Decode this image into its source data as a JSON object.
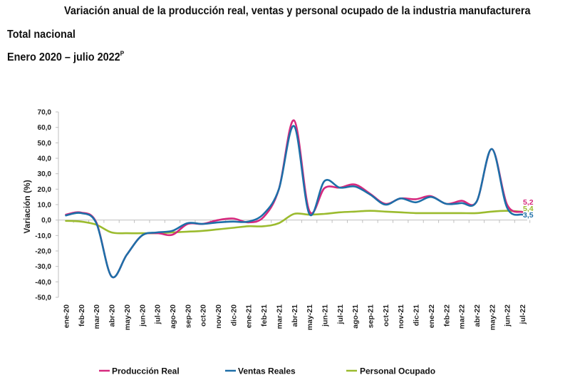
{
  "header": {
    "title": "Variación anual de la producción real, ventas y personal ocupado de la industria manufacturera",
    "subtitle_1": "Total nacional",
    "subtitle_2": "Enero 2020 – julio 2022",
    "subtitle_2_sup": "P"
  },
  "chart_data": {
    "type": "line",
    "title": "Variación anual de la producción real, ventas y personal ocupado de la industria manufacturera",
    "xlabel": "",
    "ylabel": "Variación (%)",
    "ylim": [
      -50,
      70
    ],
    "yticks": [
      70,
      60,
      50,
      40,
      30,
      20,
      10,
      0,
      -10,
      -20,
      -30,
      -40,
      -50
    ],
    "ytick_labels": [
      "70,0",
      "60,0",
      "50,0",
      "40,0",
      "30,0",
      "20,0",
      "10,0",
      "0,0",
      "-10,0",
      "-20,0",
      "-30,0",
      "-40,0",
      "-50,0"
    ],
    "grid": false,
    "legend_position": "bottom",
    "categories": [
      "ene-20",
      "feb-20",
      "mar-20",
      "abr-20",
      "may-20",
      "jun-20",
      "jul-20",
      "ago-20",
      "sep-20",
      "oct-20",
      "nov-20",
      "dic-20",
      "ene-21",
      "feb-21",
      "mar-21",
      "abr-21",
      "may-21",
      "jun-21",
      "jul-21",
      "ago-21",
      "sep-21",
      "oct-21",
      "nov-21",
      "dic-21",
      "ene-22",
      "feb-22",
      "mar-22",
      "abr-22",
      "may-22",
      "jun-22",
      "jul-22"
    ],
    "series": [
      {
        "name": "Producción Real",
        "color": "#d6297e",
        "values": [
          3.5,
          4.9,
          -1.5,
          -36.5,
          -22.5,
          -10.0,
          -8.5,
          -9.5,
          -2.5,
          -2.5,
          0.0,
          1.0,
          -1.5,
          2.0,
          20.0,
          64.5,
          6.0,
          20.7,
          21.0,
          23.0,
          17.0,
          10.5,
          14.0,
          13.5,
          15.5,
          10.5,
          12.5,
          12.0,
          46.0,
          10.0,
          5.2
        ],
        "end_label": "5,2"
      },
      {
        "name": "Ventas Reales",
        "color": "#1e6fa8",
        "values": [
          3.0,
          4.5,
          -2.0,
          -36.5,
          -22.5,
          -10.0,
          -8.0,
          -7.0,
          -2.0,
          -2.5,
          -1.5,
          -1.0,
          -1.0,
          4.0,
          20.0,
          60.8,
          4.0,
          25.3,
          21.0,
          21.7,
          16.5,
          10.0,
          14.0,
          11.5,
          15.0,
          10.5,
          11.0,
          12.0,
          46.0,
          8.0,
          3.5
        ],
        "end_label": "3,5"
      },
      {
        "name": "Personal Ocupado",
        "color": "#9bbb2e",
        "values": [
          -0.5,
          -1.0,
          -3.0,
          -8.0,
          -8.5,
          -8.5,
          -8.5,
          -8.0,
          -7.5,
          -7.0,
          -6.0,
          -5.0,
          -4.0,
          -4.0,
          -2.0,
          4.0,
          3.5,
          4.0,
          5.0,
          5.5,
          6.0,
          5.5,
          5.0,
          4.5,
          4.5,
          4.5,
          4.5,
          4.5,
          5.5,
          6.0,
          5.4
        ],
        "end_label": "5,4"
      }
    ]
  }
}
